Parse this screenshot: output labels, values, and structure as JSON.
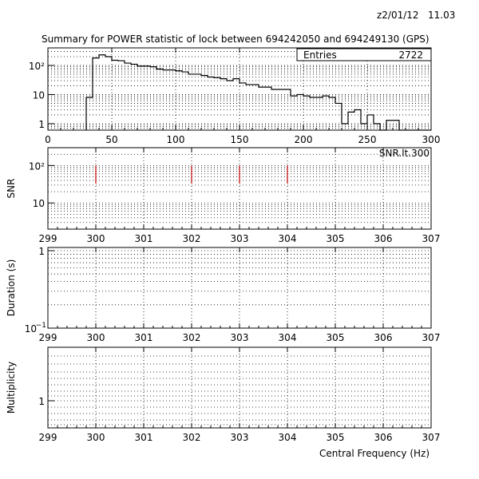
{
  "header": {
    "date": "z2/01/12",
    "time": "11.03",
    "title": "Summary for POWER statistic of lock between 694242050 and 694249130 (GPS)"
  },
  "xlabel": "Central Frequency (Hz)",
  "colors": {
    "frame": "#000000",
    "grid": "#000000",
    "snr_lines": "#cc3333",
    "background": "#ffffff"
  },
  "chart_data": [
    {
      "type": "bar",
      "id": "histogram",
      "title": "Summary for POWER statistic of lock between 694242050 and 694249130 (GPS)",
      "xlabel": "",
      "ylabel": "",
      "xlim": [
        0,
        300
      ],
      "ylim": [
        0.6,
        400
      ],
      "yscale": "log",
      "xticks": [
        "0",
        "50",
        "100",
        "150",
        "200",
        "250",
        "300"
      ],
      "yticks": [
        "1",
        "10",
        "10²"
      ],
      "grid": true,
      "legend": {
        "label": "Entries",
        "value": "2722",
        "placement": "top-right"
      },
      "bin_width": 5,
      "bins_start": [
        30,
        35,
        40,
        45,
        50,
        55,
        60,
        65,
        70,
        75,
        80,
        85,
        90,
        95,
        100,
        105,
        110,
        115,
        120,
        125,
        130,
        135,
        140,
        145,
        150,
        155,
        160,
        165,
        170,
        175,
        180,
        185,
        190,
        195,
        200,
        205,
        210,
        215,
        220,
        225,
        230,
        235,
        240,
        245,
        250,
        255,
        260,
        265,
        270,
        275,
        280,
        285,
        290,
        295
      ],
      "values": [
        8,
        180,
        230,
        200,
        150,
        145,
        120,
        110,
        95,
        95,
        90,
        75,
        70,
        70,
        65,
        60,
        50,
        50,
        45,
        40,
        38,
        35,
        30,
        35,
        25,
        22,
        22,
        18,
        18,
        15,
        15,
        15,
        9,
        10,
        9,
        8,
        8,
        9,
        8,
        5,
        1,
        2.5,
        3,
        1,
        2,
        1,
        0.6,
        1.3,
        1.3,
        0.6,
        0.6,
        0.6,
        0.6,
        0.6
      ]
    },
    {
      "type": "line",
      "id": "snr",
      "title": "",
      "ylabel": "SNR",
      "legend": "SNR.lt.300",
      "xlim": [
        299,
        307
      ],
      "ylim": [
        2,
        300
      ],
      "yscale": "log",
      "xticks": [
        "299",
        "300",
        "301",
        "302",
        "303",
        "304",
        "305",
        "306",
        "307"
      ],
      "yticks": [
        "10",
        "10²"
      ],
      "grid": true,
      "points": [
        {
          "x": 300,
          "y": 100,
          "low": 33
        },
        {
          "x": 302,
          "y": 100,
          "low": 33
        },
        {
          "x": 303,
          "y": 100,
          "low": 33
        },
        {
          "x": 304,
          "y": 100,
          "low": 33
        }
      ]
    },
    {
      "type": "scatter",
      "id": "duration",
      "title": "",
      "ylabel": "Duration (s)",
      "xlim": [
        299,
        307
      ],
      "ylim": [
        0.1,
        1.1
      ],
      "yscale": "log",
      "xticks": [
        "299",
        "300",
        "301",
        "302",
        "303",
        "304",
        "305",
        "306",
        "307"
      ],
      "yticks": [
        "1",
        "10^-1"
      ],
      "grid": true,
      "points": []
    },
    {
      "type": "scatter",
      "id": "multiplicity",
      "title": "",
      "ylabel": "Multiplicity",
      "xlim": [
        299,
        307
      ],
      "yscale": "log",
      "xticks": [
        "299",
        "300",
        "301",
        "302",
        "303",
        "304",
        "305",
        "306",
        "307"
      ],
      "yticks": [
        "1"
      ],
      "grid": true,
      "points": []
    }
  ]
}
